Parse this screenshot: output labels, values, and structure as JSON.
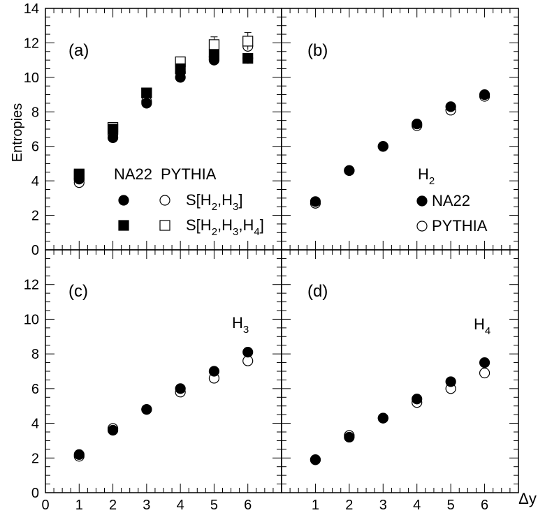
{
  "chart_data": [
    {
      "panel": "(a)",
      "type": "scatter",
      "xlabel": "",
      "ylabel": "Entropies",
      "xlim": [
        0,
        7
      ],
      "ylim": [
        0,
        14
      ],
      "legend": {
        "headers": [
          "NA22",
          "PYTHIA"
        ],
        "rows": [
          {
            "label": "S[H",
            "subs": [
              "2",
              "3"
            ]
          },
          {
            "label": "S[H",
            "subs": [
              "2",
              "3",
              "4"
            ]
          }
        ]
      },
      "series": [
        {
          "name": "NA22 S[H2,H3]",
          "marker": "filled-circle",
          "x": [
            1,
            2,
            3,
            4,
            5,
            6
          ],
          "y": [
            4.1,
            6.5,
            8.5,
            10.0,
            11.0,
            11.1
          ]
        },
        {
          "name": "PYTHIA S[H2,H3]",
          "marker": "open-circle",
          "x": [
            1,
            2,
            3,
            4,
            5,
            6
          ],
          "y": [
            3.9,
            6.7,
            8.6,
            10.3,
            11.2,
            11.8
          ]
        },
        {
          "name": "NA22 S[H2,H3,H4]",
          "marker": "filled-square",
          "x": [
            1,
            2,
            3,
            4,
            5,
            6
          ],
          "y": [
            4.4,
            7.0,
            9.1,
            10.5,
            11.3,
            11.1
          ]
        },
        {
          "name": "PYTHIA S[H2,H3,H4]",
          "marker": "open-square",
          "x": [
            1,
            2,
            3,
            4,
            5,
            6
          ],
          "y": [
            4.3,
            7.1,
            9.1,
            10.9,
            11.9,
            12.1
          ],
          "err": [
            0.1,
            0.15,
            0.15,
            0.25,
            0.45,
            0.5
          ]
        }
      ]
    },
    {
      "panel": "(b)",
      "type": "scatter",
      "xlim": [
        0,
        7
      ],
      "ylim": [
        0,
        14
      ],
      "legend": {
        "title": "H",
        "title_sub": "2",
        "entries": [
          "NA22",
          "PYTHIA"
        ]
      },
      "series": [
        {
          "name": "NA22",
          "marker": "filled-circle",
          "x": [
            1,
            2,
            3,
            4,
            5,
            6
          ],
          "y": [
            2.8,
            4.6,
            6.0,
            7.3,
            8.3,
            9.0
          ]
        },
        {
          "name": "PYTHIA",
          "marker": "open-circle",
          "x": [
            1,
            2,
            3,
            4,
            5,
            6
          ],
          "y": [
            2.7,
            4.6,
            6.0,
            7.2,
            8.1,
            8.9
          ]
        }
      ]
    },
    {
      "panel": "(c)",
      "type": "scatter",
      "xlim": [
        0,
        7
      ],
      "ylim": [
        0,
        14
      ],
      "label": {
        "text": "H",
        "sub": "3"
      },
      "series": [
        {
          "name": "NA22",
          "marker": "filled-circle",
          "x": [
            1,
            2,
            3,
            4,
            5,
            6
          ],
          "y": [
            2.2,
            3.6,
            4.8,
            6.0,
            7.0,
            8.1
          ]
        },
        {
          "name": "PYTHIA",
          "marker": "open-circle",
          "x": [
            1,
            2,
            3,
            4,
            5,
            6
          ],
          "y": [
            2.1,
            3.7,
            4.8,
            5.8,
            6.6,
            7.6
          ]
        }
      ]
    },
    {
      "panel": "(d)",
      "type": "scatter",
      "xlabel": "Δy",
      "xlim": [
        0,
        7
      ],
      "ylim": [
        0,
        14
      ],
      "label": {
        "text": "H",
        "sub": "4"
      },
      "series": [
        {
          "name": "NA22",
          "marker": "filled-circle",
          "x": [
            1,
            2,
            3,
            4,
            5,
            6
          ],
          "y": [
            1.9,
            3.2,
            4.3,
            5.4,
            6.4,
            7.5
          ]
        },
        {
          "name": "PYTHIA",
          "marker": "open-circle",
          "x": [
            1,
            2,
            3,
            4,
            5,
            6
          ],
          "y": [
            1.9,
            3.3,
            4.3,
            5.2,
            6.0,
            6.9
          ]
        }
      ]
    }
  ],
  "axes": {
    "y_ticks_top": [
      "0",
      "2",
      "4",
      "6",
      "8",
      "10",
      "12",
      "14"
    ],
    "y_ticks_bottom": [
      "0",
      "2",
      "4",
      "6",
      "8",
      "10",
      "12"
    ],
    "x_ticks_left": [
      "0",
      "1",
      "2",
      "3",
      "4",
      "5",
      "6"
    ],
    "x_ticks_right": [
      "1",
      "2",
      "3",
      "4",
      "5",
      "6"
    ]
  }
}
